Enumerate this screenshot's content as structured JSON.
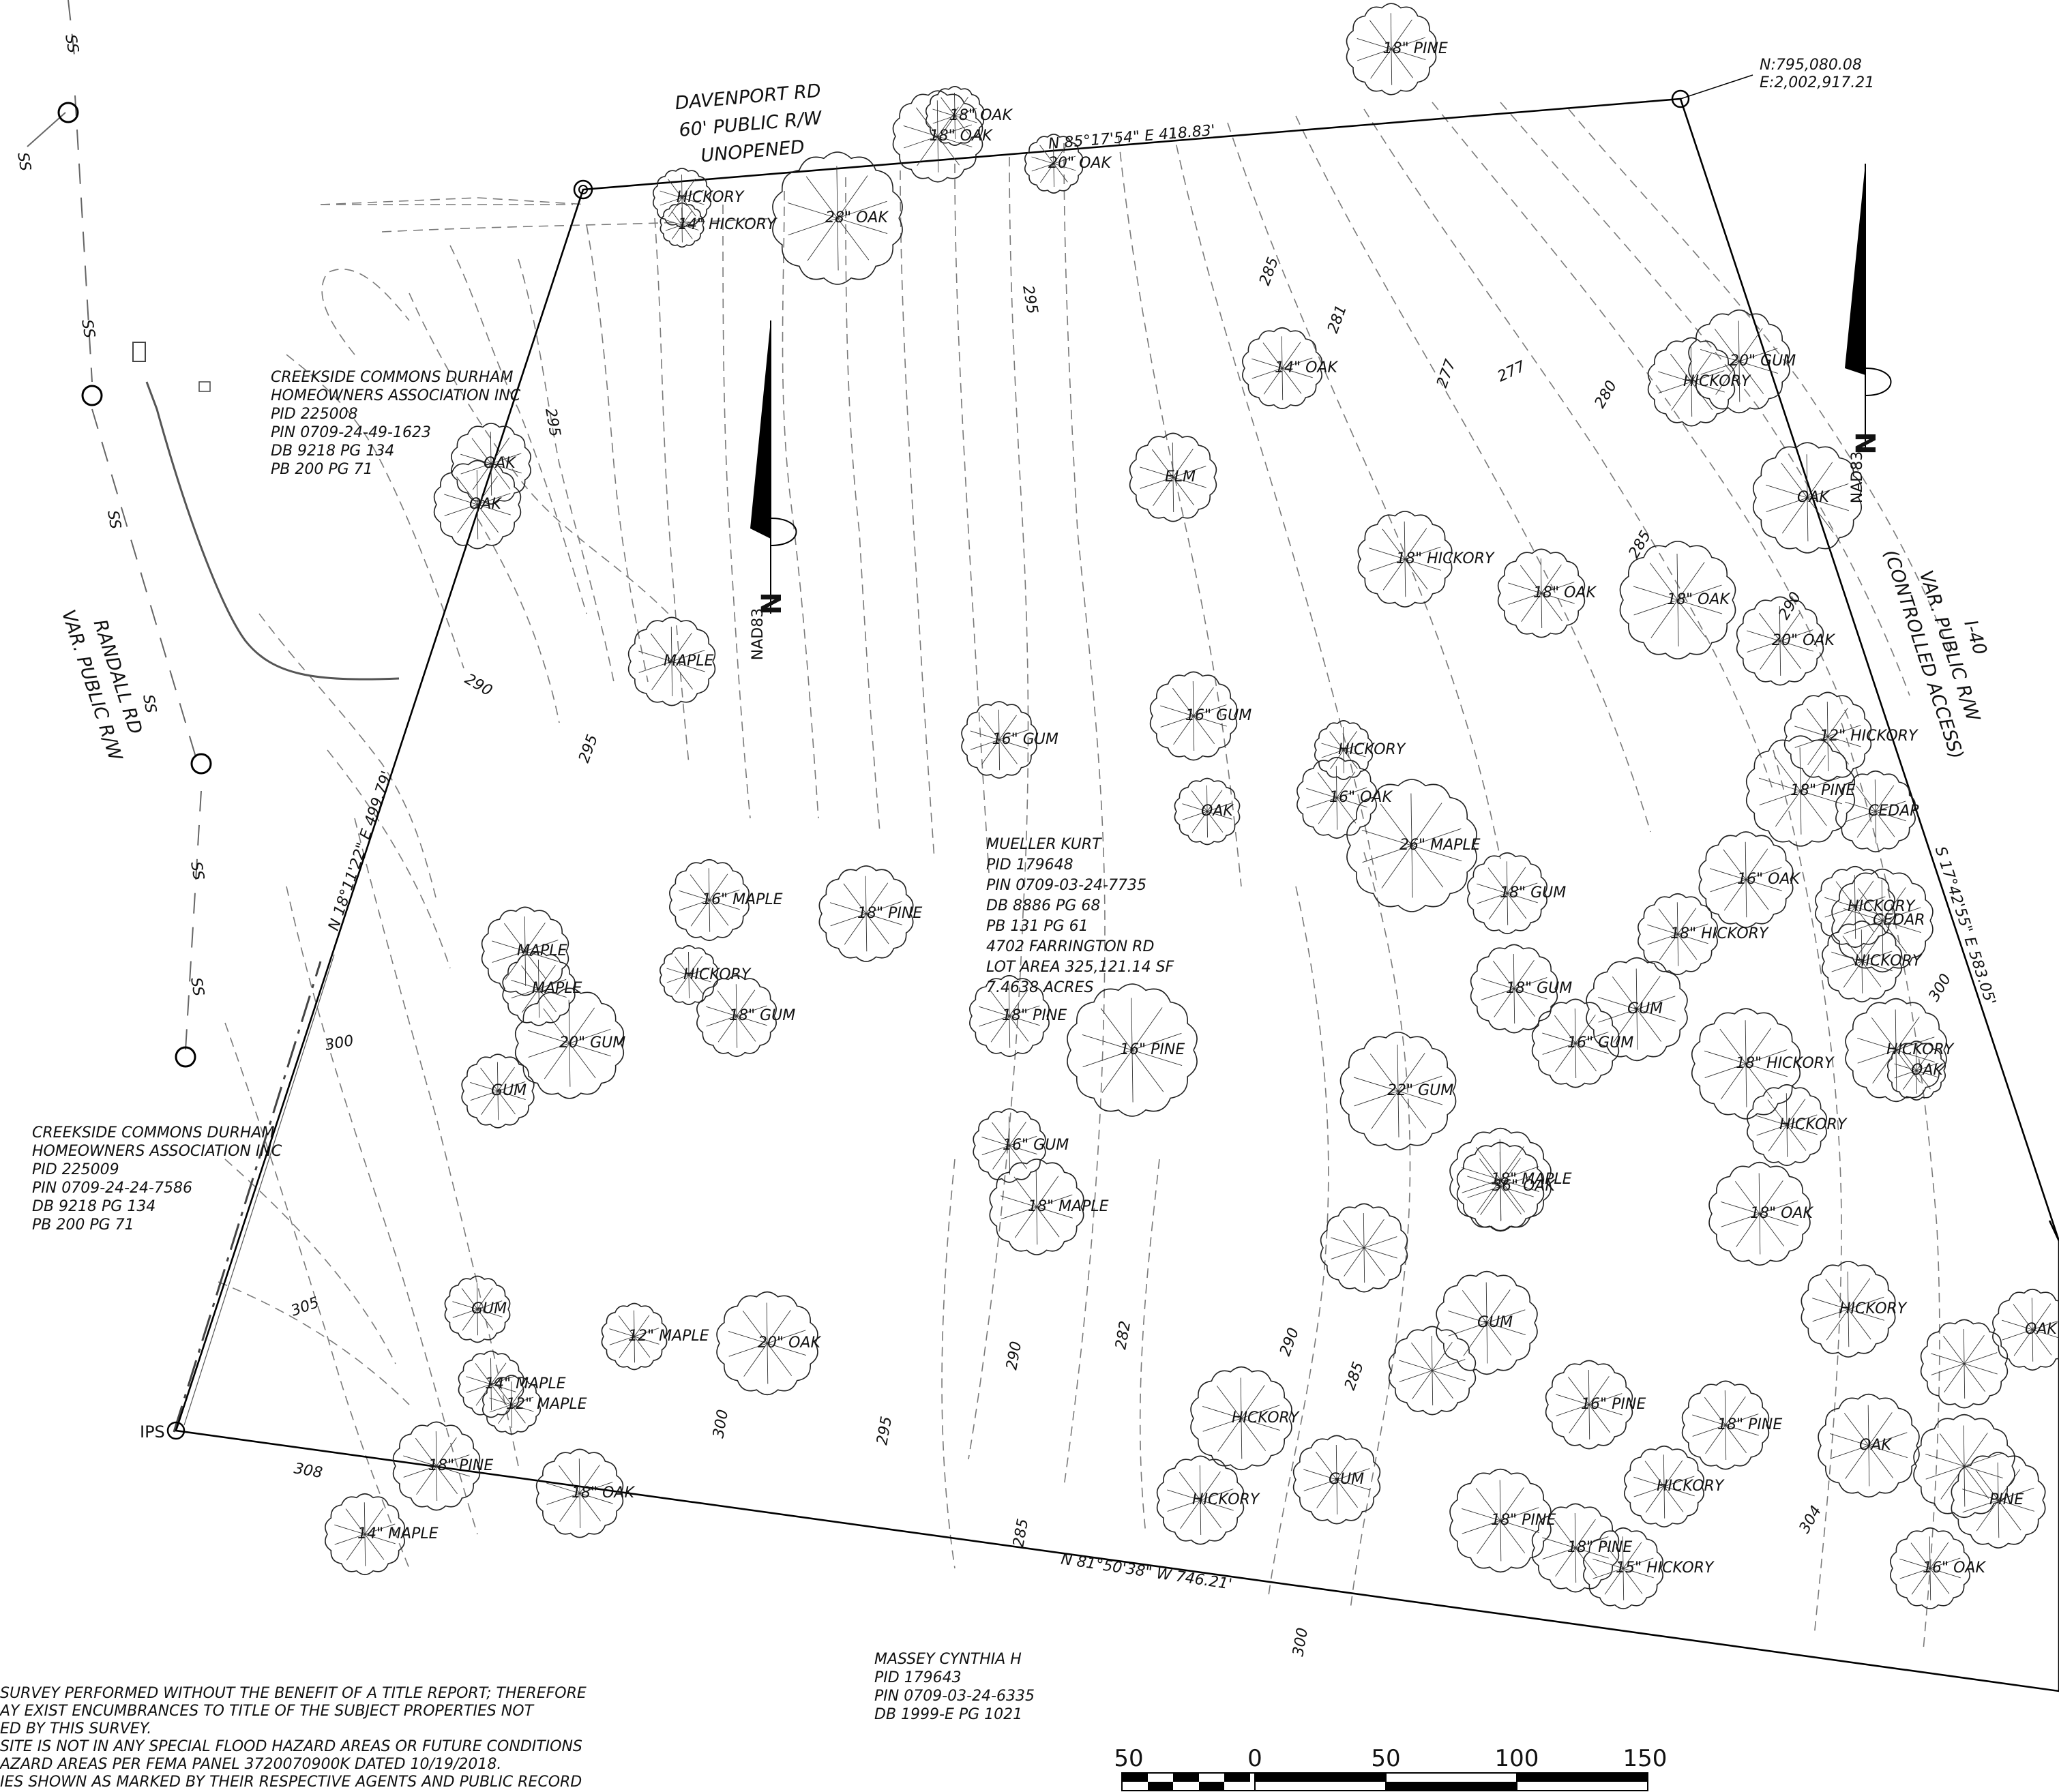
{
  "road_labels": {
    "davenport": [
      "DAVENPORT RD",
      "60' PUBLIC R/W",
      "UNOPENED"
    ],
    "randall": [
      "RANDALL RD",
      "VAR. PUBLIC R/W"
    ],
    "i40": [
      "I-40",
      "VAR. PUBLIC R/W",
      "(CONTROLLED ACCESS)"
    ]
  },
  "boundary_bearings": {
    "north": "N 85°17'54\" E  418.83'",
    "west": "N 18°11'22\" E  499.79'",
    "east": "S 17°42'55\" E  583.05'",
    "south": "N 81°50'38\" W  746.21'"
  },
  "corner_coordinate": [
    "N:795,080.08",
    "E:2,002,917.21"
  ],
  "corner_marker": "IPS",
  "parcels": {
    "subject": [
      "MUELLER KURT",
      "PID  179648",
      "PIN  0709-03-24-7735",
      "DB  8886  PG  68",
      "PB  131  PG  61",
      "4702  FARRINGTON RD",
      "LOT AREA  325,121.14  SF",
      "7.4638  ACRES"
    ],
    "creekside_north": [
      "CREEKSIDE COMMONS DURHAM",
      "HOMEOWNERS ASSOCIATION INC",
      "PID  225008",
      "PIN  0709-24-49-1623",
      "DB  9218  PG  134",
      "PB  200  PG  71"
    ],
    "creekside_south": [
      "CREEKSIDE COMMONS DURHAM",
      "HOMEOWNERS ASSOCIATION INC",
      "PID  225009",
      "PIN  0709-24-24-7586",
      "DB  9218  PG  134",
      "PB  200  PG  71"
    ],
    "massey": [
      "MASSEY CYNTHIA H",
      "PID  179643",
      "PIN  0709-03-24-6335",
      "DB  1999-E  PG  1021"
    ]
  },
  "north_arrow": {
    "letter": "N",
    "datum": "NAD83"
  },
  "sewer_label": "SS",
  "notes": [
    "SURVEY PERFORMED WITHOUT THE BENEFIT OF A TITLE REPORT; THEREFORE",
    "AY EXIST ENCUMBRANCES TO TITLE OF THE SUBJECT PROPERTIES NOT",
    "ED BY THIS SURVEY.",
    "SITE IS NOT IN ANY SPECIAL FLOOD HAZARD AREAS OR FUTURE CONDITIONS",
    "AZARD AREAS PER FEMA PANEL 3720070900K DATED 10/19/2018.",
    "IES SHOWN AS MARKED BY THEIR RESPECTIVE AGENTS AND PUBLIC RECORD"
  ],
  "scale_bar": {
    "labels": [
      "50",
      "0",
      "50",
      "100",
      "150"
    ]
  },
  "contour_labels": [
    "295",
    "290",
    "295",
    "300",
    "305",
    "308",
    "300",
    "295",
    "290",
    "295",
    "285",
    "282",
    "281",
    "277",
    "277",
    "280",
    "285",
    "290",
    "290",
    "300",
    "304",
    "300",
    "285",
    "285"
  ],
  "trees": [
    [
      "18\" PINE"
    ],
    [
      "18\" OAK"
    ],
    [
      "28\" OAK"
    ],
    [
      "HICKORY"
    ],
    [
      "14\" HICKORY"
    ],
    [
      "20\" OAK"
    ],
    [
      "18\" OAK"
    ],
    [
      "OAK"
    ],
    [
      "OAK"
    ],
    [
      "MAPLE"
    ],
    [
      "16\" GUM"
    ],
    [
      "16\" MAPLE"
    ],
    [
      "18\" PINE"
    ],
    [
      "MAPLE"
    ],
    [
      "MAPLE"
    ],
    [
      "HICKORY"
    ],
    [
      "18\" GUM"
    ],
    [
      "20\" GUM"
    ],
    [
      "GUM"
    ],
    [
      "GUM"
    ],
    [
      "12\" MAPLE"
    ],
    [
      "20\" OAK"
    ],
    [
      "14\" MAPLE"
    ],
    [
      "18\" PINE"
    ],
    [
      "18\" OAK"
    ],
    [
      "14\" MAPLE"
    ],
    [
      "12\" MAPLE"
    ],
    [
      "14\" OAK"
    ],
    [
      "ELM"
    ],
    [
      "18\" HICKORY"
    ],
    [
      "16\" GUM"
    ],
    [
      "HICKORY"
    ],
    [
      "16\" OAK"
    ],
    [
      "26\" MAPLE"
    ],
    [
      "18\" GUM"
    ],
    [
      "18\" OAK"
    ],
    [
      "OAK"
    ],
    [
      "16\" PINE"
    ],
    [
      "18\" PINE"
    ],
    [
      "16\" GUM"
    ],
    [
      "18\" MAPLE"
    ],
    [
      "22\" GUM"
    ],
    [
      "18\" GUM"
    ],
    [
      "18\" MAPLE"
    ],
    [
      "GUM"
    ],
    [
      "20\" GUM"
    ],
    [
      "18\" PINE"
    ],
    [
      "OAK"
    ],
    [
      "12\" HICKORY"
    ],
    [
      "CEDAR"
    ],
    [
      "HICKORY"
    ],
    [
      "18\" OAK"
    ],
    [
      "20\" OAK"
    ],
    [
      "CEDAR"
    ],
    [
      "16\" OAK"
    ],
    [
      "HICKORY"
    ],
    [
      "HICKORY"
    ],
    [
      "HICKORY"
    ],
    [
      "OAK"
    ],
    [
      "18\" HICKORY"
    ],
    [
      "36\" OAK"
    ],
    [
      "18\" OAK"
    ],
    [
      "HICKORY"
    ],
    [
      "18\" HICKORY"
    ],
    [
      "16\" GUM"
    ],
    [
      "HICKORY"
    ],
    [
      "18\" PINE"
    ],
    [
      "18\" PINE"
    ],
    [
      "GUM"
    ],
    [
      "GUM"
    ],
    [
      "16\" PINE"
    ],
    [
      "18\" PINE"
    ],
    [
      "HICKORY"
    ],
    [
      "OAK"
    ],
    [
      "16\" OAK"
    ],
    [
      "PINE"
    ],
    [
      "OAK"
    ],
    [
      "HICKORY"
    ],
    [
      "HICKORY"
    ],
    [
      "15\" HICKORY"
    ]
  ]
}
